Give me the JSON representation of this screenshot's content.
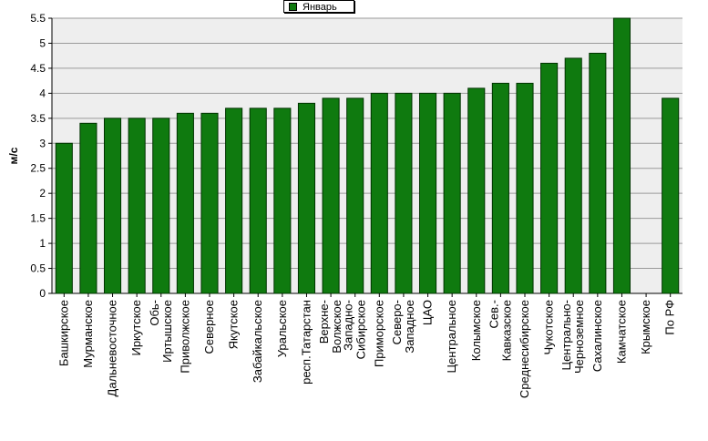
{
  "chart_data": {
    "type": "bar",
    "title": "",
    "xlabel": "",
    "ylabel": "м/с",
    "ylim": [
      0,
      5.5
    ],
    "yticks": [
      "0",
      "0.5",
      "1",
      "1.5",
      "2",
      "2.5",
      "3",
      "3.5",
      "4",
      "4.5",
      "5",
      "5.5"
    ],
    "grid": true,
    "legend_position": "top-center",
    "bar_color": "#0f7a0f",
    "plot_background": "#eeeeee",
    "categories": [
      "Башкирское",
      "Мурманское",
      "Дальневосточное",
      "Иркутское",
      "Обь-Иртышское",
      "Приволжское",
      "Северное",
      "Якутское",
      "Забайкальское",
      "Уральское",
      "респ.Татарстан",
      "Верхне-Волжское",
      "Западно-Сибирское",
      "Приморское",
      "Северо-Западное",
      "ЦАО",
      "Центральное",
      "Колымское",
      "Сев.-Кавказское",
      "Среднесибирское",
      "Чукотское",
      "Центрально-Черноземное",
      "Сахалинское",
      "Камчатское",
      "Крымское",
      "По РФ"
    ],
    "series": [
      {
        "name": "Январь",
        "values": [
          3.0,
          3.4,
          3.5,
          3.5,
          3.5,
          3.6,
          3.6,
          3.7,
          3.7,
          3.7,
          3.8,
          3.9,
          3.9,
          4.0,
          4.0,
          4.0,
          4.0,
          4.1,
          4.2,
          4.2,
          4.6,
          4.7,
          4.8,
          5.5,
          null,
          3.9
        ]
      }
    ]
  }
}
